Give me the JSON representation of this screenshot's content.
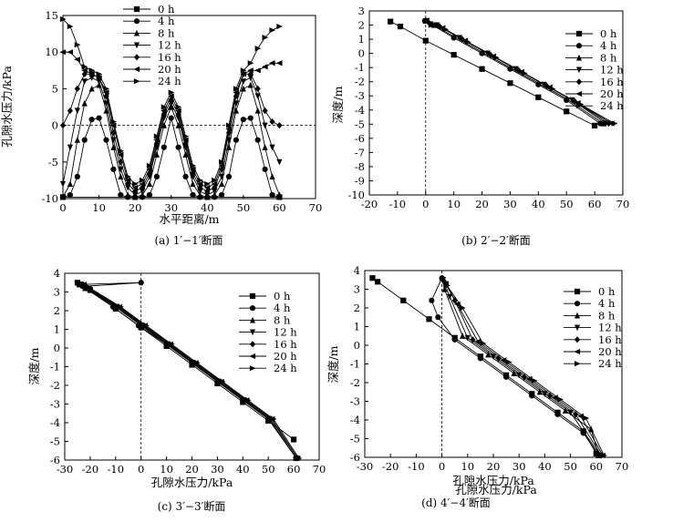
{
  "legend_labels": [
    "0 h",
    "4 h",
    "8 h",
    "12 h",
    "16 h",
    "20 h",
    "24 h"
  ],
  "chart_data": [
    {
      "type": "line",
      "caption": "(a) 1′−1′断面",
      "xlabel": "水平距离/m",
      "ylabel": "孔隙水压力/kPa",
      "xlim": [
        0,
        70
      ],
      "ylim": [
        -10,
        15
      ],
      "xticks": [
        0,
        10,
        20,
        30,
        40,
        50,
        60,
        70
      ],
      "yticks": [
        -10,
        -5,
        0,
        5,
        10,
        15
      ],
      "reference_line": {
        "axis": "y",
        "value": 0,
        "style": "dashed"
      },
      "legend_placement": "top-left",
      "series": [
        {
          "name": "0 h",
          "x": [
            0,
            60
          ],
          "y": [
            -9.8,
            -9.8
          ]
        },
        {
          "name": "4 h",
          "x": [
            0,
            2,
            4,
            6,
            8,
            10,
            12,
            14,
            16,
            18,
            20,
            22,
            24,
            26,
            28,
            30,
            32,
            34,
            36,
            38,
            40,
            42,
            44,
            46,
            48,
            50,
            52,
            54,
            56,
            58,
            60
          ],
          "y": [
            -9.8,
            -9.5,
            -7,
            -2,
            0.8,
            1,
            -2,
            -6,
            -9.5,
            -9.8,
            -9.8,
            -9.8,
            -9.5,
            -7,
            -3,
            1,
            -3,
            -7,
            -9.5,
            -9.8,
            -9.8,
            -9.8,
            -9.5,
            -7,
            -2,
            0.8,
            1,
            -2,
            -6,
            -9.5,
            -9.8
          ]
        },
        {
          "name": "8 h",
          "x": [
            0,
            2,
            4,
            6,
            8,
            10,
            12,
            14,
            16,
            18,
            20,
            22,
            24,
            26,
            28,
            30,
            32,
            34,
            36,
            38,
            40,
            42,
            44,
            46,
            48,
            50,
            52,
            54,
            56,
            58,
            60
          ],
          "y": [
            -9.8,
            -8,
            -2,
            3,
            5,
            5.5,
            2,
            -3,
            -7,
            -9.5,
            -9.8,
            -9.5,
            -8,
            -4,
            0,
            2.5,
            0,
            -4,
            -8,
            -9.5,
            -9.8,
            -9.5,
            -8,
            -3,
            2,
            5,
            5.5,
            2,
            -3,
            -7,
            -9.5
          ]
        },
        {
          "name": "12 h",
          "x": [
            0,
            2,
            4,
            6,
            8,
            10,
            12,
            14,
            16,
            18,
            20,
            22,
            24,
            26,
            28,
            30,
            32,
            34,
            36,
            38,
            40,
            42,
            44,
            46,
            48,
            50,
            52,
            54,
            56,
            58,
            60
          ],
          "y": [
            -8,
            -3,
            2,
            6,
            6.5,
            6,
            3,
            -2,
            -6,
            -8.5,
            -9.5,
            -9,
            -7,
            -3,
            1,
            3,
            1,
            -3,
            -7,
            -9,
            -9.5,
            -9,
            -7,
            -2,
            3,
            6,
            6.5,
            4,
            0,
            -3,
            -5
          ]
        },
        {
          "name": "16 h",
          "x": [
            0,
            2,
            4,
            6,
            8,
            10,
            12,
            14,
            16,
            18,
            20,
            22,
            24,
            26,
            28,
            30,
            32,
            34,
            36,
            38,
            40,
            42,
            44,
            46,
            48,
            50,
            52,
            54,
            56,
            58,
            60
          ],
          "y": [
            0,
            2,
            5,
            7,
            7,
            6.5,
            4,
            -1,
            -5,
            -8,
            -9,
            -8.5,
            -6.5,
            -2.5,
            1.5,
            3.5,
            1.5,
            -2.5,
            -6.5,
            -8.5,
            -9,
            -8.5,
            -6,
            -1,
            4,
            7,
            7,
            5,
            2,
            0.5,
            0
          ]
        },
        {
          "name": "20 h",
          "x": [
            0,
            2,
            4,
            6,
            8,
            10,
            12,
            14,
            16,
            18,
            20,
            22,
            24,
            26,
            28,
            30,
            32,
            34,
            36,
            38,
            40,
            42,
            44,
            46,
            48,
            50,
            52,
            54,
            56,
            58,
            60
          ],
          "y": [
            10,
            10,
            9,
            7.5,
            7,
            6.5,
            4.5,
            0,
            -4,
            -7.5,
            -8.5,
            -8,
            -6,
            -2,
            2,
            4,
            2,
            -2,
            -6,
            -8,
            -8.5,
            -8,
            -5.5,
            -0.5,
            4.5,
            7,
            7.5,
            7.5,
            8,
            8.5,
            8.5
          ]
        },
        {
          "name": "24 h",
          "x": [
            0,
            2,
            4,
            6,
            8,
            10,
            12,
            14,
            16,
            18,
            20,
            22,
            24,
            26,
            28,
            30,
            32,
            34,
            36,
            38,
            40,
            42,
            44,
            46,
            48,
            50,
            52,
            54,
            56,
            58,
            60
          ],
          "y": [
            14.5,
            13.5,
            11,
            8,
            7.5,
            7,
            5,
            0.5,
            -3.5,
            -7,
            -8,
            -7.5,
            -5.5,
            -1.5,
            2.5,
            4.5,
            2.5,
            -1.5,
            -5.5,
            -7.5,
            -8,
            -7.5,
            -5,
            0,
            5,
            7.5,
            8.5,
            10.5,
            12,
            13,
            13.5
          ]
        }
      ]
    },
    {
      "type": "line",
      "caption": "(b) 2′−2′断面",
      "xlabel": "孔隙水压力/kPa",
      "ylabel": "深度/m",
      "xlim": [
        -20,
        70
      ],
      "ylim": [
        -10,
        3
      ],
      "xticks": [
        -20,
        -10,
        0,
        10,
        20,
        30,
        40,
        50,
        60,
        70
      ],
      "yticks": [
        -10,
        -9,
        -8,
        -7,
        -6,
        -5,
        -4,
        -3,
        -2,
        -1,
        0,
        1,
        2,
        3
      ],
      "reference_line": {
        "axis": "x",
        "value": 0,
        "style": "dashed"
      },
      "legend_placement": "top-right",
      "series": [
        {
          "name": "0 h",
          "x": [
            -12.5,
            -9,
            0,
            10,
            20,
            30,
            40,
            50,
            60
          ],
          "y": [
            2.25,
            1.9,
            0.9,
            -0.1,
            -1.1,
            -2.1,
            -3.1,
            -4.1,
            -5.1
          ]
        },
        {
          "name": "4 h",
          "x": [
            -0.3,
            2,
            10,
            20,
            30,
            40,
            50,
            62
          ],
          "y": [
            2.3,
            2.05,
            1.1,
            0.0,
            -1.1,
            -2.2,
            -3.3,
            -4.95
          ]
        },
        {
          "name": "8 h",
          "x": [
            0,
            3,
            10,
            20,
            30,
            40,
            50,
            63
          ],
          "y": [
            2.3,
            2.0,
            1.2,
            0.1,
            -1.0,
            -2.1,
            -3.2,
            -4.95
          ]
        },
        {
          "name": "12 h",
          "x": [
            0.5,
            4,
            12,
            22,
            32,
            42,
            52,
            64
          ],
          "y": [
            2.3,
            2.0,
            1.1,
            0.0,
            -1.1,
            -2.2,
            -3.3,
            -4.95
          ]
        },
        {
          "name": "16 h",
          "x": [
            1,
            5,
            13,
            23,
            33,
            43,
            53,
            65
          ],
          "y": [
            2.2,
            1.9,
            1.0,
            -0.1,
            -1.2,
            -2.3,
            -3.4,
            -4.95
          ]
        },
        {
          "name": "20 h",
          "x": [
            1.5,
            6,
            14,
            24,
            34,
            44,
            54,
            66
          ],
          "y": [
            2.1,
            1.8,
            0.9,
            -0.2,
            -1.3,
            -2.4,
            -3.5,
            -4.95
          ]
        },
        {
          "name": "24 h",
          "x": [
            2,
            7,
            15,
            25,
            35,
            45,
            55,
            67
          ],
          "y": [
            2.0,
            1.7,
            0.8,
            -0.3,
            -1.4,
            -2.5,
            -3.6,
            -4.95
          ]
        }
      ]
    },
    {
      "type": "line",
      "caption": "(c) 3′−3′断面",
      "xlabel": "孔隙水压力/kPa",
      "ylabel": "深度/m",
      "xlim": [
        -30,
        70
      ],
      "ylim": [
        -6,
        4
      ],
      "xticks": [
        -30,
        -20,
        -10,
        0,
        10,
        20,
        30,
        40,
        50,
        60,
        70
      ],
      "yticks": [
        -6,
        -5,
        -4,
        -3,
        -2,
        -1,
        0,
        1,
        2,
        3,
        4
      ],
      "reference_line": {
        "axis": "x",
        "value": 0,
        "style": "dashed"
      },
      "legend_placement": "top-right",
      "series": [
        {
          "name": "0 h",
          "x": [
            -25,
            -24,
            -20,
            -10,
            0,
            10,
            20,
            30,
            40,
            50,
            60
          ],
          "y": [
            3.5,
            3.4,
            3.1,
            2.1,
            1.1,
            0.1,
            -0.9,
            -1.9,
            -2.9,
            -3.9,
            -4.9
          ]
        },
        {
          "name": "4 h",
          "x": [
            -24.5,
            0,
            -23,
            -11,
            -1,
            10,
            20,
            30,
            40,
            50,
            61
          ],
          "y": [
            3.4,
            3.5,
            3.3,
            2.2,
            1.2,
            0.2,
            -0.8,
            -1.8,
            -2.8,
            -3.8,
            -5.9
          ]
        },
        {
          "name": "8 h",
          "x": [
            -24,
            -22,
            -10,
            0,
            10,
            20,
            30,
            40,
            50,
            61
          ],
          "y": [
            3.4,
            3.2,
            2.2,
            1.2,
            0.2,
            -0.8,
            -1.8,
            -2.8,
            -3.8,
            -5.9
          ]
        },
        {
          "name": "12 h",
          "x": [
            -23.5,
            -21.5,
            -9.5,
            0.5,
            10.5,
            20.5,
            30.5,
            40.5,
            50.5,
            61
          ],
          "y": [
            3.4,
            3.2,
            2.2,
            1.2,
            0.2,
            -0.8,
            -1.8,
            -2.8,
            -3.8,
            -5.9
          ]
        },
        {
          "name": "16 h",
          "x": [
            -23,
            -21,
            -9,
            1,
            11,
            21,
            31,
            41,
            51,
            61.5
          ],
          "y": [
            3.4,
            3.2,
            2.2,
            1.2,
            0.2,
            -0.8,
            -1.8,
            -2.8,
            -3.8,
            -5.9
          ]
        },
        {
          "name": "20 h",
          "x": [
            -22.5,
            -20.5,
            -8.5,
            1.5,
            11.5,
            21.5,
            31.5,
            41.5,
            51.5,
            61.5
          ],
          "y": [
            3.4,
            3.2,
            2.2,
            1.2,
            0.2,
            -0.8,
            -1.8,
            -2.8,
            -3.8,
            -5.9
          ]
        },
        {
          "name": "24 h",
          "x": [
            -22,
            -20,
            -8,
            2,
            12,
            22,
            32,
            42,
            52,
            62
          ],
          "y": [
            3.4,
            3.2,
            2.2,
            1.2,
            0.2,
            -0.8,
            -1.8,
            -2.8,
            -3.8,
            -5.9
          ]
        }
      ]
    },
    {
      "type": "line",
      "caption": "(d) 4′−4′断面",
      "xlabel": "孔隙水压力/kPa",
      "ylabel": "深度/m",
      "xlim": [
        -30,
        70
      ],
      "ylim": [
        -6,
        4
      ],
      "xticks": [
        -30,
        -20,
        -10,
        0,
        10,
        20,
        30,
        40,
        50,
        60,
        70
      ],
      "yticks": [
        -6,
        -5,
        -4,
        -3,
        -2,
        -1,
        0,
        1,
        2,
        3,
        4
      ],
      "reference_line": {
        "axis": "x",
        "value": 0,
        "style": "dashed"
      },
      "legend_placement": "top-right",
      "series": [
        {
          "name": "0 h",
          "x": [
            -27,
            -25,
            -15,
            -5,
            5,
            15,
            25,
            35,
            45,
            55,
            60
          ],
          "y": [
            3.6,
            3.4,
            2.4,
            1.4,
            0.4,
            -0.6,
            -1.6,
            -2.6,
            -3.6,
            -4.6,
            -5.8
          ]
        },
        {
          "name": "4 h",
          "x": [
            0,
            -4,
            -1.5,
            5,
            15,
            25,
            35,
            45,
            55,
            61
          ],
          "y": [
            3.6,
            2.4,
            1.5,
            0.3,
            -0.7,
            -1.7,
            -2.7,
            -3.7,
            -4.7,
            -5.9
          ]
        },
        {
          "name": "8 h",
          "x": [
            0,
            1,
            8,
            18,
            28,
            38,
            48,
            58,
            61
          ],
          "y": [
            3.6,
            3.0,
            0.5,
            -0.5,
            -1.5,
            -2.5,
            -3.5,
            -4.5,
            -5.9
          ]
        },
        {
          "name": "12 h",
          "x": [
            0.5,
            3,
            10,
            20,
            30,
            40,
            50,
            61.5
          ],
          "y": [
            3.5,
            2.6,
            0.4,
            -0.6,
            -1.6,
            -2.6,
            -3.6,
            -5.9
          ]
        },
        {
          "name": "16 h",
          "x": [
            1,
            5,
            12,
            22,
            32,
            42,
            52,
            62
          ],
          "y": [
            3.4,
            2.4,
            0.3,
            -0.7,
            -1.7,
            -2.7,
            -3.7,
            -5.9
          ]
        },
        {
          "name": "20 h",
          "x": [
            1.5,
            6,
            14,
            24,
            34,
            44,
            54,
            62.5
          ],
          "y": [
            3.3,
            2.2,
            0.2,
            -0.8,
            -1.8,
            -2.8,
            -3.8,
            -5.9
          ]
        },
        {
          "name": "24 h",
          "x": [
            2,
            8,
            16,
            26,
            36,
            46,
            56,
            63
          ],
          "y": [
            3.2,
            2.0,
            0.1,
            -0.9,
            -1.9,
            -2.9,
            -3.9,
            -5.9
          ]
        }
      ]
    }
  ]
}
